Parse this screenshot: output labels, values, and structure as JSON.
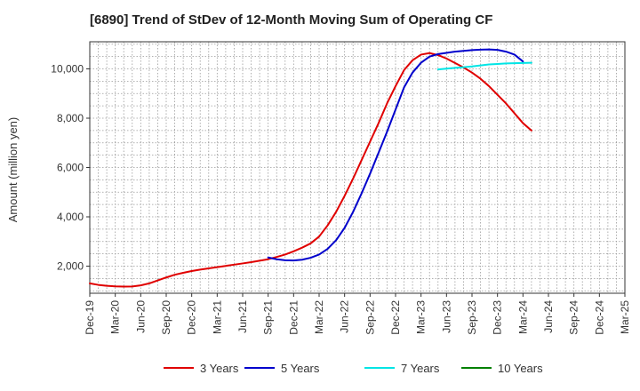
{
  "chart_data": {
    "type": "line",
    "title": "[6890]  Trend of StDev of 12-Month Moving Sum of Operating CF",
    "ylabel": "Amount (million yen)",
    "xlabel": "",
    "ylim": [
      900,
      11100
    ],
    "yticks": [
      2000,
      4000,
      6000,
      8000,
      10000
    ],
    "ytick_labels": [
      "2,000",
      "4,000",
      "6,000",
      "8,000",
      "10,000"
    ],
    "xticks": [
      "Dec-19",
      "Mar-20",
      "Jun-20",
      "Sep-20",
      "Dec-20",
      "Mar-21",
      "Jun-21",
      "Sep-21",
      "Dec-21",
      "Mar-22",
      "Jun-22",
      "Sep-22",
      "Dec-22",
      "Mar-23",
      "Jun-23",
      "Sep-23",
      "Dec-23",
      "Mar-24",
      "Jun-24",
      "Sep-24",
      "Dec-24",
      "Mar-25"
    ],
    "grid": true,
    "legend_position": "bottom",
    "series": [
      {
        "name": "3 Years",
        "color": "#e00000",
        "start_index": 0,
        "values": [
          1300,
          1240,
          1200,
          1180,
          1170,
          1175,
          1220,
          1300,
          1420,
          1540,
          1650,
          1730,
          1800,
          1860,
          1910,
          1960,
          2010,
          2060,
          2110,
          2160,
          2220,
          2280,
          2370,
          2470,
          2600,
          2750,
          2920,
          3200,
          3650,
          4200,
          4850,
          5550,
          6300,
          7050,
          7800,
          8600,
          9300,
          9950,
          10350,
          10580,
          10640,
          10560,
          10420,
          10240,
          10060,
          9850,
          9600,
          9300,
          8950,
          8600,
          8200,
          7800,
          7500
        ]
      },
      {
        "name": "5 Years",
        "color": "#0000cc",
        "start_index": 21,
        "values": [
          2350,
          2280,
          2240,
          2230,
          2260,
          2340,
          2470,
          2700,
          3050,
          3550,
          4200,
          4950,
          5750,
          6600,
          7450,
          8350,
          9250,
          9850,
          10250,
          10500,
          10600,
          10650,
          10700,
          10730,
          10760,
          10780,
          10790,
          10770,
          10700,
          10580,
          10300
        ]
      },
      {
        "name": "7 Years",
        "color": "#00e5e5",
        "start_index": 41,
        "values": [
          9980,
          10010,
          10040,
          10070,
          10100,
          10140,
          10180,
          10200,
          10220,
          10230,
          10240,
          10250
        ]
      },
      {
        "name": "10 Years",
        "color": "#008000",
        "start_index": 0,
        "values": []
      }
    ]
  }
}
